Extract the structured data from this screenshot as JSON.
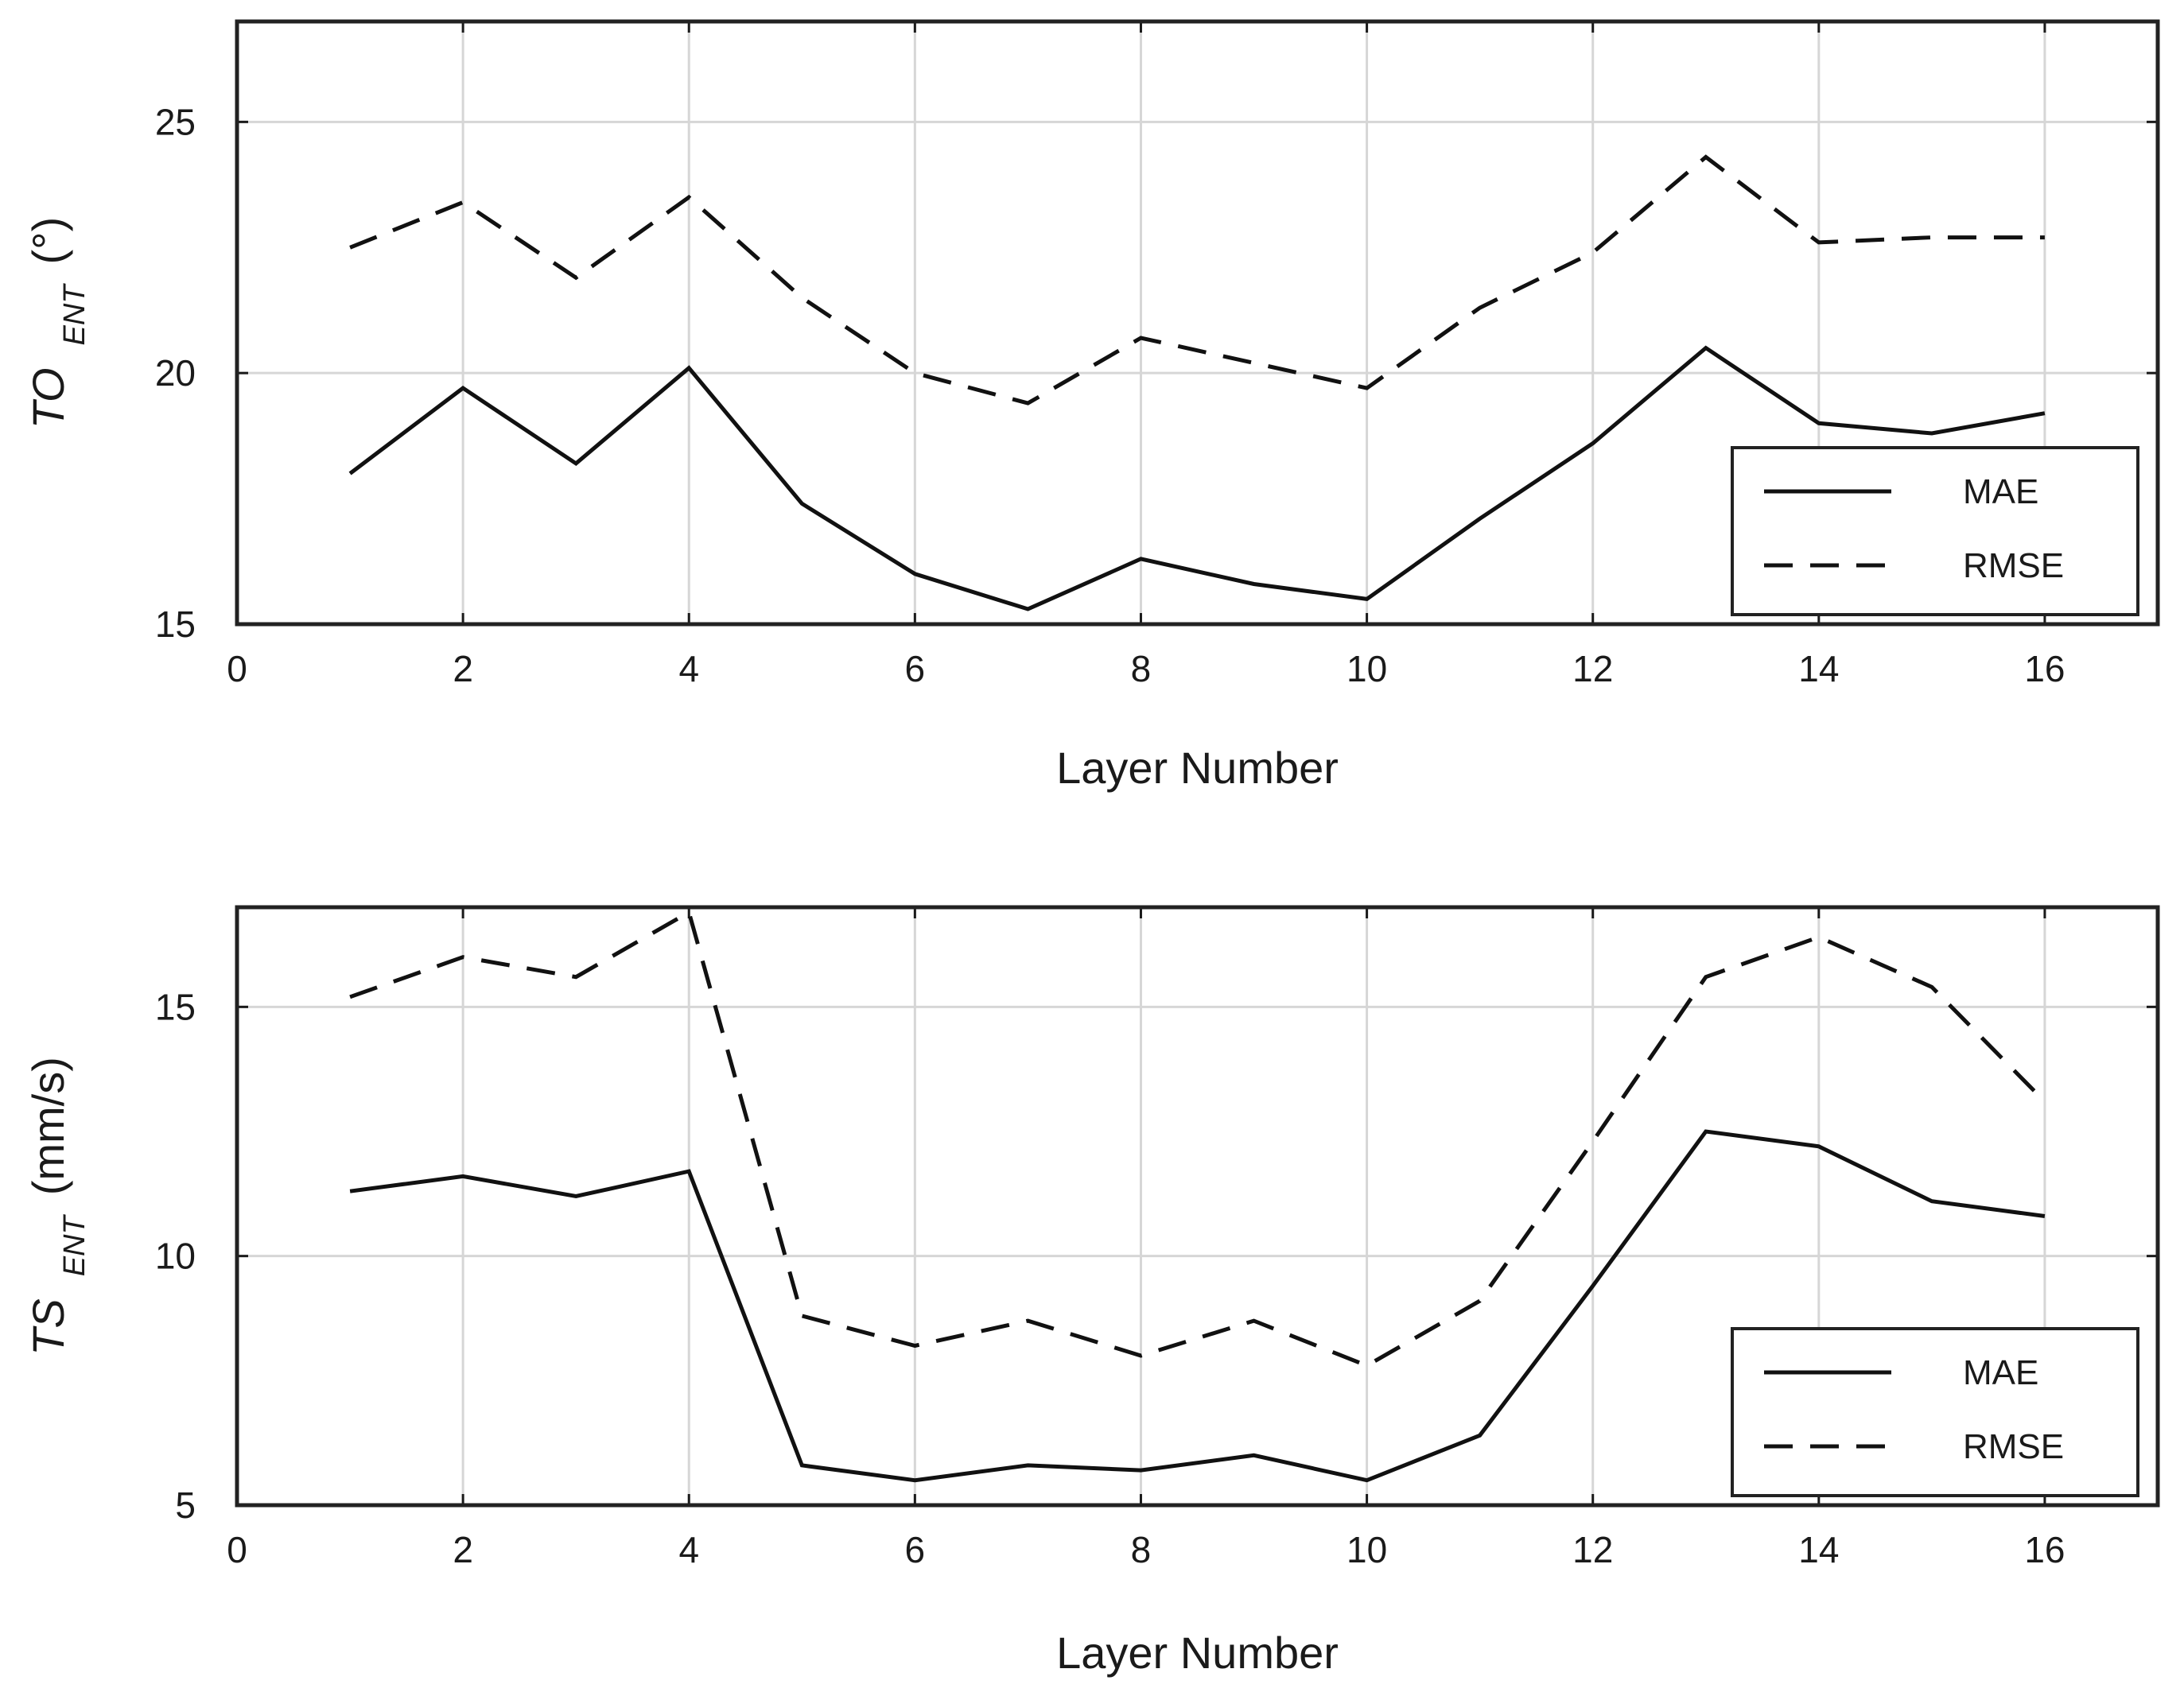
{
  "chart_data": [
    {
      "type": "line",
      "xlabel": "Layer Number",
      "ylabel": {
        "main": "TO",
        "sub": "ENT",
        "unit": "(°)"
      },
      "xlim": [
        0,
        17
      ],
      "ylim": [
        15,
        27
      ],
      "xticks": [
        0,
        2,
        4,
        6,
        8,
        10,
        12,
        14,
        16
      ],
      "yticks": [
        15,
        20,
        25
      ],
      "grid": true,
      "legend": "bottom-right",
      "x": [
        1,
        2,
        3,
        4,
        5,
        6,
        7,
        8,
        9,
        10,
        11,
        12,
        13,
        14,
        15,
        16
      ],
      "series": [
        {
          "name": "MAE",
          "style": "solid",
          "values": [
            18.0,
            19.7,
            18.2,
            20.1,
            17.4,
            16.0,
            15.3,
            16.3,
            15.8,
            15.5,
            17.1,
            18.6,
            20.5,
            19.0,
            18.8,
            19.2
          ]
        },
        {
          "name": "RMSE",
          "style": "dashed",
          "values": [
            22.5,
            23.4,
            21.9,
            23.5,
            21.5,
            20.0,
            19.4,
            20.7,
            20.2,
            19.7,
            21.3,
            22.4,
            24.3,
            22.6,
            22.7,
            22.7
          ]
        }
      ]
    },
    {
      "type": "line",
      "xlabel": "Layer Number",
      "ylabel": {
        "main": "TS",
        "sub": "ENT",
        "unit": "(mm/s)"
      },
      "xlim": [
        0,
        17
      ],
      "ylim": [
        5,
        17
      ],
      "xticks": [
        0,
        2,
        4,
        6,
        8,
        10,
        12,
        14,
        16
      ],
      "yticks": [
        5,
        10,
        15
      ],
      "grid": true,
      "legend": "bottom-right",
      "x": [
        1,
        2,
        3,
        4,
        5,
        6,
        7,
        8,
        9,
        10,
        11,
        12,
        13,
        14,
        15,
        16
      ],
      "series": [
        {
          "name": "MAE",
          "style": "solid",
          "values": [
            11.3,
            11.6,
            11.2,
            11.7,
            5.8,
            5.5,
            5.8,
            5.7,
            6.0,
            5.5,
            6.4,
            9.4,
            12.5,
            12.2,
            11.1,
            10.8
          ]
        },
        {
          "name": "RMSE",
          "style": "dashed",
          "values": [
            15.2,
            16.0,
            15.6,
            16.9,
            8.8,
            8.2,
            8.7,
            8.0,
            8.7,
            7.8,
            9.1,
            12.3,
            15.6,
            16.4,
            15.4,
            13.1
          ]
        }
      ]
    }
  ]
}
